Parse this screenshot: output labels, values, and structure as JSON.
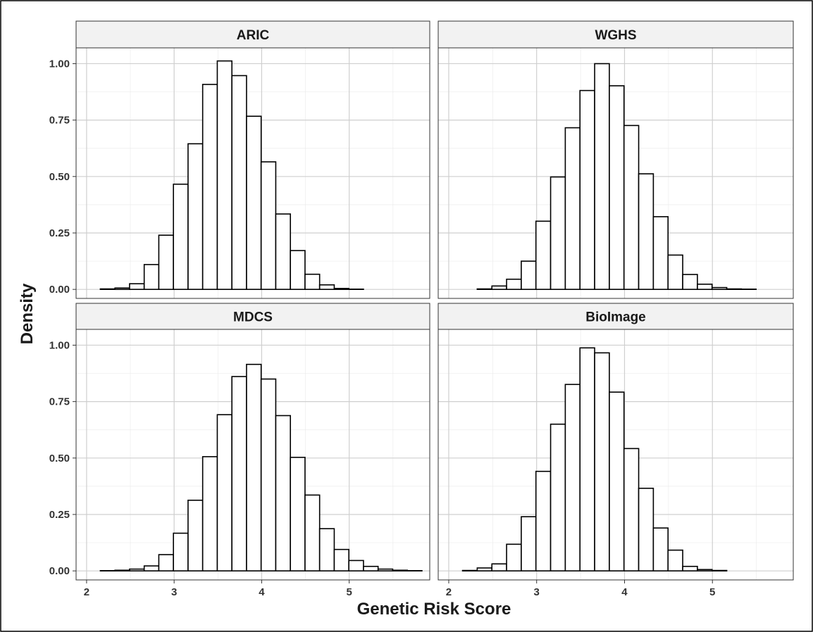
{
  "chart_data": {
    "type": "bar",
    "xlabel": "Genetic Risk Score",
    "ylabel": "Density",
    "xlim": [
      1.88,
      5.92
    ],
    "ylim": [
      -0.04,
      1.07
    ],
    "x_ticks": [
      2,
      3,
      4,
      5
    ],
    "y_ticks": [
      0.0,
      0.25,
      0.5,
      0.75,
      1.0
    ],
    "y_tick_labels": [
      "0.00",
      "0.25",
      "0.50",
      "0.75",
      "1.00"
    ],
    "grid": true,
    "bin_width": 0.167,
    "panels": [
      {
        "title": "ARIC",
        "bins": [
          {
            "x0": 1.99,
            "value": 0.0
          },
          {
            "x0": 2.157,
            "value": 0.002
          },
          {
            "x0": 2.324,
            "value": 0.006
          },
          {
            "x0": 2.491,
            "value": 0.025
          },
          {
            "x0": 2.658,
            "value": 0.11
          },
          {
            "x0": 2.825,
            "value": 0.24
          },
          {
            "x0": 2.992,
            "value": 0.466
          },
          {
            "x0": 3.159,
            "value": 0.645
          },
          {
            "x0": 3.326,
            "value": 0.908
          },
          {
            "x0": 3.493,
            "value": 1.012
          },
          {
            "x0": 3.66,
            "value": 0.947
          },
          {
            "x0": 3.827,
            "value": 0.767
          },
          {
            "x0": 3.994,
            "value": 0.565
          },
          {
            "x0": 4.161,
            "value": 0.334
          },
          {
            "x0": 4.328,
            "value": 0.172
          },
          {
            "x0": 4.495,
            "value": 0.067
          },
          {
            "x0": 4.662,
            "value": 0.02
          },
          {
            "x0": 4.829,
            "value": 0.004
          },
          {
            "x0": 4.996,
            "value": 0.001
          },
          {
            "x0": 5.163,
            "value": 0.0
          },
          {
            "x0": 5.33,
            "value": 0.0
          },
          {
            "x0": 5.497,
            "value": 0.0
          },
          {
            "x0": 5.664,
            "value": 0.0
          }
        ]
      },
      {
        "title": "WGHS",
        "bins": [
          {
            "x0": 1.99,
            "value": 0.0
          },
          {
            "x0": 2.157,
            "value": 0.0
          },
          {
            "x0": 2.324,
            "value": 0.002
          },
          {
            "x0": 2.491,
            "value": 0.015
          },
          {
            "x0": 2.658,
            "value": 0.045
          },
          {
            "x0": 2.825,
            "value": 0.125
          },
          {
            "x0": 2.992,
            "value": 0.302
          },
          {
            "x0": 3.159,
            "value": 0.498
          },
          {
            "x0": 3.326,
            "value": 0.716
          },
          {
            "x0": 3.493,
            "value": 0.881
          },
          {
            "x0": 3.66,
            "value": 1.0
          },
          {
            "x0": 3.827,
            "value": 0.902
          },
          {
            "x0": 3.994,
            "value": 0.726
          },
          {
            "x0": 4.161,
            "value": 0.512
          },
          {
            "x0": 4.328,
            "value": 0.322
          },
          {
            "x0": 4.495,
            "value": 0.152
          },
          {
            "x0": 4.662,
            "value": 0.066
          },
          {
            "x0": 4.829,
            "value": 0.023
          },
          {
            "x0": 4.996,
            "value": 0.008
          },
          {
            "x0": 5.163,
            "value": 0.002
          },
          {
            "x0": 5.33,
            "value": 0.001
          },
          {
            "x0": 5.497,
            "value": 0.0
          },
          {
            "x0": 5.664,
            "value": 0.0
          }
        ]
      },
      {
        "title": "MDCS",
        "bins": [
          {
            "x0": 1.99,
            "value": 0.0
          },
          {
            "x0": 2.157,
            "value": 0.001
          },
          {
            "x0": 2.324,
            "value": 0.003
          },
          {
            "x0": 2.491,
            "value": 0.008
          },
          {
            "x0": 2.658,
            "value": 0.022
          },
          {
            "x0": 2.825,
            "value": 0.072
          },
          {
            "x0": 2.992,
            "value": 0.167
          },
          {
            "x0": 3.159,
            "value": 0.313
          },
          {
            "x0": 3.326,
            "value": 0.506
          },
          {
            "x0": 3.493,
            "value": 0.692
          },
          {
            "x0": 3.66,
            "value": 0.861
          },
          {
            "x0": 3.827,
            "value": 0.915
          },
          {
            "x0": 3.994,
            "value": 0.85
          },
          {
            "x0": 4.161,
            "value": 0.688
          },
          {
            "x0": 4.328,
            "value": 0.503
          },
          {
            "x0": 4.495,
            "value": 0.336
          },
          {
            "x0": 4.662,
            "value": 0.187
          },
          {
            "x0": 4.829,
            "value": 0.095
          },
          {
            "x0": 4.996,
            "value": 0.046
          },
          {
            "x0": 5.163,
            "value": 0.02
          },
          {
            "x0": 5.33,
            "value": 0.008
          },
          {
            "x0": 5.497,
            "value": 0.003
          },
          {
            "x0": 5.664,
            "value": 0.001
          }
        ]
      },
      {
        "title": "BioImage",
        "bins": [
          {
            "x0": 1.99,
            "value": 0.0
          },
          {
            "x0": 2.157,
            "value": 0.002
          },
          {
            "x0": 2.324,
            "value": 0.013
          },
          {
            "x0": 2.491,
            "value": 0.031
          },
          {
            "x0": 2.658,
            "value": 0.118
          },
          {
            "x0": 2.825,
            "value": 0.24
          },
          {
            "x0": 2.992,
            "value": 0.441
          },
          {
            "x0": 3.159,
            "value": 0.65
          },
          {
            "x0": 3.326,
            "value": 0.826
          },
          {
            "x0": 3.493,
            "value": 0.988
          },
          {
            "x0": 3.66,
            "value": 0.966
          },
          {
            "x0": 3.827,
            "value": 0.792
          },
          {
            "x0": 3.994,
            "value": 0.542
          },
          {
            "x0": 4.161,
            "value": 0.366
          },
          {
            "x0": 4.328,
            "value": 0.19
          },
          {
            "x0": 4.495,
            "value": 0.092
          },
          {
            "x0": 4.662,
            "value": 0.02
          },
          {
            "x0": 4.829,
            "value": 0.006
          },
          {
            "x0": 4.996,
            "value": 0.002
          },
          {
            "x0": 5.163,
            "value": 0.0
          },
          {
            "x0": 5.33,
            "value": 0.0
          },
          {
            "x0": 5.497,
            "value": 0.0
          },
          {
            "x0": 5.664,
            "value": 0.0
          }
        ]
      }
    ]
  }
}
